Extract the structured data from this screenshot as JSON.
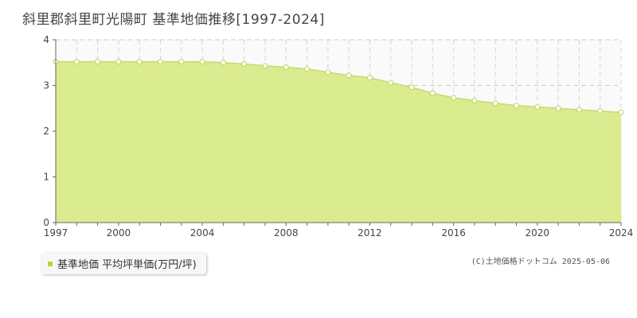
{
  "title": "斜里郡斜里町光陽町 基準地価推移[1997-2024]",
  "legend_label": "基準地価 平均坪単価(万円/坪)",
  "credit": "(C)土地価格ドットコム 2025-05-06",
  "colors": {
    "fill": "#dbeb90",
    "line": "#c2dc6e",
    "marker_fill": "#ffffff",
    "marker_stroke": "#b9d65a",
    "legend_swatch": "#b6d63c",
    "grid": "#cccccc",
    "axis": "#666666"
  },
  "chart_data": {
    "type": "area",
    "title": "斜里郡斜里町光陽町 基準地価推移[1997-2024]",
    "xlabel": "",
    "ylabel": "",
    "x": [
      1997,
      1998,
      1999,
      2000,
      2001,
      2002,
      2003,
      2004,
      2005,
      2006,
      2007,
      2008,
      2009,
      2010,
      2011,
      2012,
      2013,
      2014,
      2015,
      2016,
      2017,
      2018,
      2019,
      2020,
      2021,
      2022,
      2023,
      2024
    ],
    "series": [
      {
        "name": "基準地価 平均坪単価(万円/坪)",
        "values": [
          3.52,
          3.52,
          3.52,
          3.52,
          3.52,
          3.52,
          3.52,
          3.52,
          3.5,
          3.47,
          3.43,
          3.4,
          3.36,
          3.29,
          3.22,
          3.17,
          3.06,
          2.96,
          2.83,
          2.73,
          2.67,
          2.61,
          2.56,
          2.53,
          2.5,
          2.47,
          2.44,
          2.41
        ]
      }
    ],
    "xticks": [
      "1997",
      "2000",
      "2004",
      "2008",
      "2012",
      "2016",
      "2020",
      "2024"
    ],
    "yticks": [
      "0",
      "1",
      "2",
      "3",
      "4"
    ],
    "xlim": [
      1997,
      2024
    ],
    "ylim": [
      0,
      4
    ],
    "grid": true,
    "legend_position": "bottom-left"
  }
}
